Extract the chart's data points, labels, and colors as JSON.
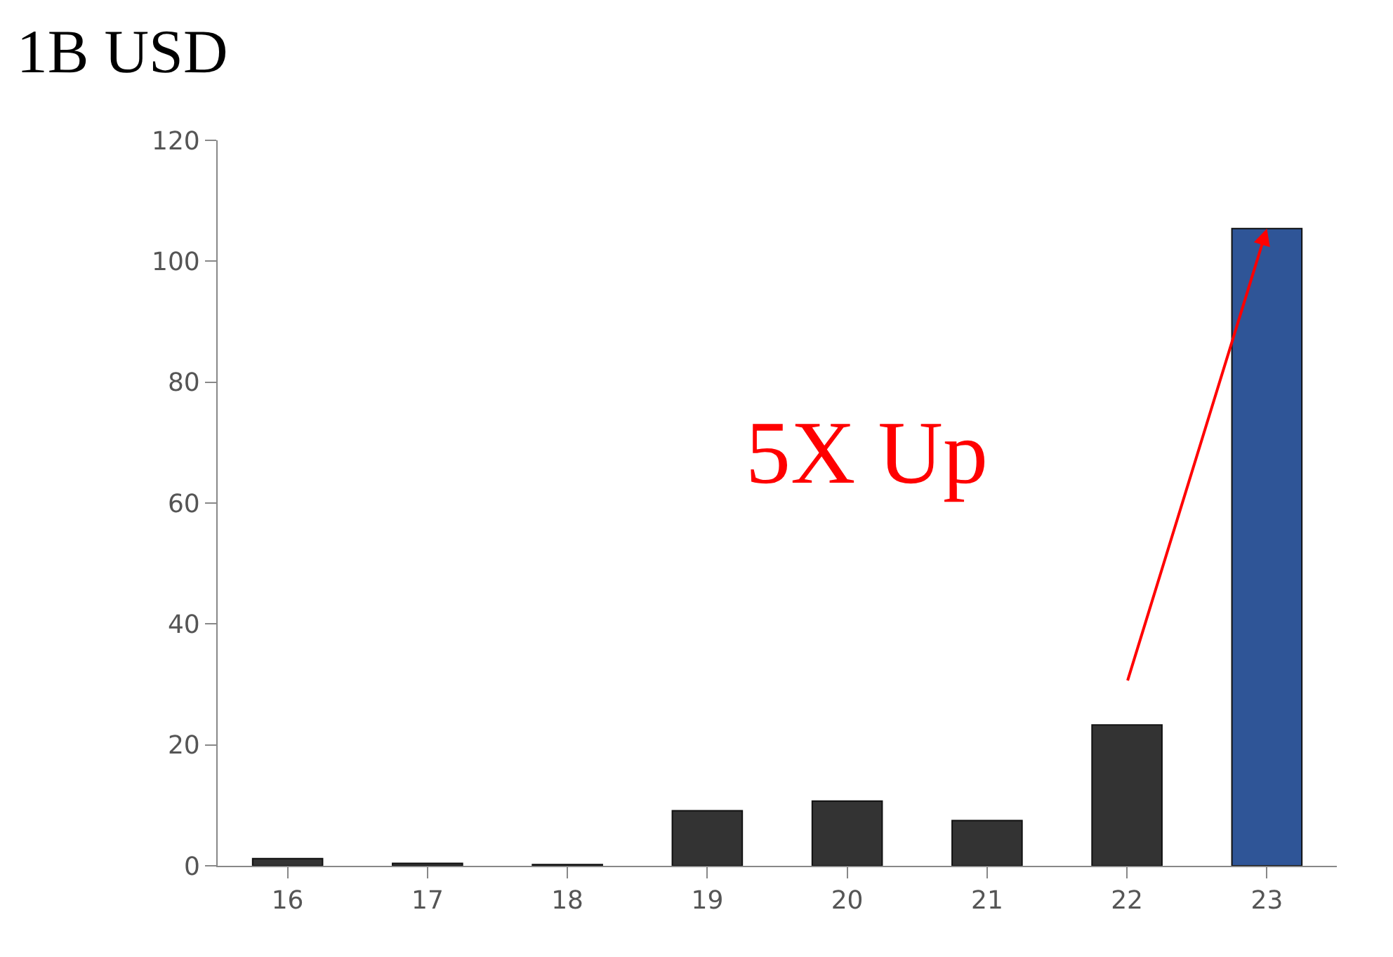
{
  "chart_data": {
    "type": "bar",
    "title": "1B USD",
    "categories": [
      "16",
      "17",
      "18",
      "19",
      "20",
      "21",
      "22",
      "23"
    ],
    "values": [
      1.2,
      0.4,
      0.2,
      9.1,
      10.7,
      7.5,
      23.3,
      105.4
    ],
    "colors": [
      "#333333",
      "#333333",
      "#333333",
      "#333333",
      "#333333",
      "#333333",
      "#333333",
      "#2f5597"
    ],
    "ylim": [
      0,
      120
    ],
    "yticks": [
      0,
      20,
      40,
      60,
      80,
      100,
      120
    ],
    "annotations": [
      "5X Up"
    ],
    "legend": false
  }
}
